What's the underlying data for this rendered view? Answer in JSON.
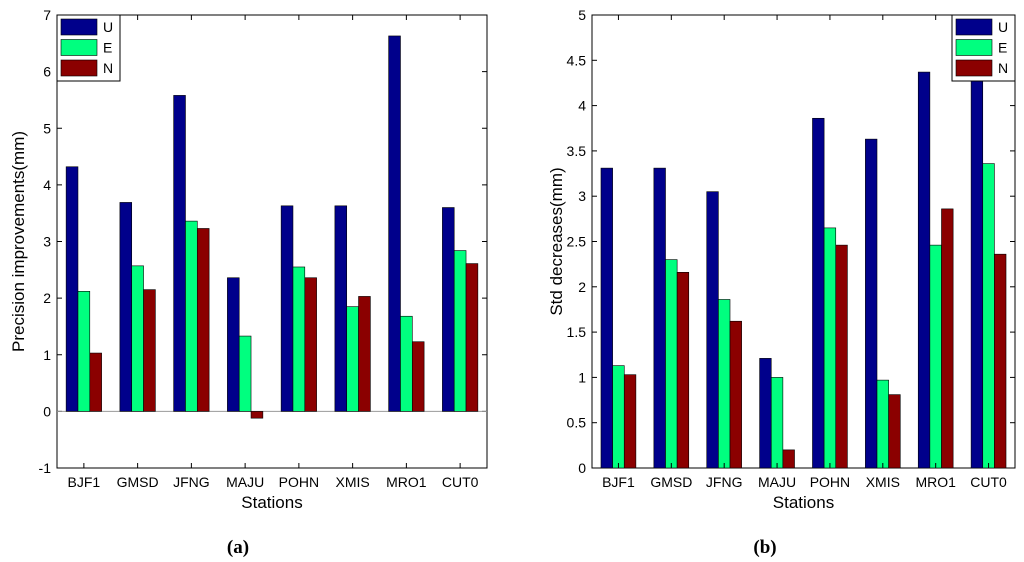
{
  "chart_data": [
    {
      "type": "bar",
      "panel_label": "(a)",
      "xlabel": "Stations",
      "ylabel": "Precision improvements(mm)",
      "ylim": [
        -1,
        7
      ],
      "yticks": [
        -1,
        0,
        1,
        2,
        3,
        4,
        5,
        6,
        7
      ],
      "categories": [
        "BJF1",
        "GMSD",
        "JFNG",
        "MAJU",
        "POHN",
        "XMIS",
        "MRO1",
        "CUT0"
      ],
      "legend_position": "top-left",
      "series": [
        {
          "name": "U",
          "color": "#00008b",
          "values": [
            4.32,
            3.69,
            5.58,
            2.36,
            3.63,
            3.63,
            6.63,
            3.6
          ]
        },
        {
          "name": "E",
          "color": "#00ff7f",
          "values": [
            2.12,
            2.57,
            3.36,
            1.33,
            2.55,
            1.85,
            1.68,
            2.84
          ]
        },
        {
          "name": "N",
          "color": "#8b0000",
          "values": [
            1.03,
            2.15,
            3.23,
            -0.12,
            2.36,
            2.03,
            1.23,
            2.61
          ]
        }
      ]
    },
    {
      "type": "bar",
      "panel_label": "(b)",
      "xlabel": "Stations",
      "ylabel": "Std decreases(mm)",
      "ylim": [
        0,
        5
      ],
      "yticks": [
        0,
        0.5,
        1,
        1.5,
        2,
        2.5,
        3,
        3.5,
        4,
        4.5,
        5
      ],
      "categories": [
        "BJF1",
        "GMSD",
        "JFNG",
        "MAJU",
        "POHN",
        "XMIS",
        "MRO1",
        "CUT0"
      ],
      "legend_position": "top-right",
      "series": [
        {
          "name": "U",
          "color": "#00008b",
          "values": [
            3.31,
            3.31,
            3.05,
            1.21,
            3.86,
            3.63,
            4.37,
            4.69
          ]
        },
        {
          "name": "E",
          "color": "#00ff7f",
          "values": [
            1.13,
            2.3,
            1.86,
            1.0,
            2.65,
            0.97,
            2.46,
            3.36
          ]
        },
        {
          "name": "N",
          "color": "#8b0000",
          "values": [
            1.03,
            2.16,
            1.62,
            0.2,
            2.46,
            0.81,
            2.86,
            2.36
          ]
        }
      ]
    }
  ]
}
